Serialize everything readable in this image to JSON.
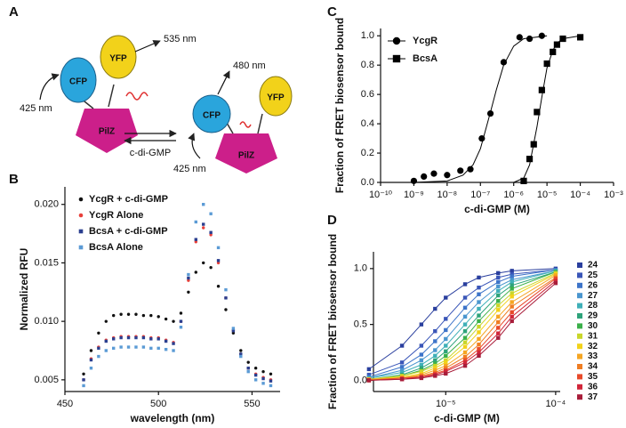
{
  "diagram": {
    "label": "A",
    "excitation_left": "425 nm",
    "cfp_left": "CFP",
    "yfp_left": "YFP",
    "emission_left": "535 nm",
    "pilz_left": "PilZ",
    "ligand": "c-di-GMP",
    "emission_right": "480 nm",
    "cfp_right": "CFP",
    "yfp_right": "YFP",
    "pilz_right": "PilZ",
    "excitation_right": "425 nm"
  },
  "chart_data": [
    {
      "type": "scatter",
      "label": "B",
      "xlabel": "wavelength (nm)",
      "ylabel": "Normalized RFU",
      "x": [
        460,
        464,
        468,
        472,
        476,
        480,
        484,
        488,
        492,
        496,
        500,
        504,
        508,
        512,
        516,
        520,
        524,
        528,
        532,
        536,
        540,
        544,
        548,
        552,
        556,
        560
      ],
      "xlim": [
        450,
        565
      ],
      "xticks": [
        450,
        500,
        550
      ],
      "ylim": [
        0.004,
        0.0215
      ],
      "yticks": [
        0.005,
        {
          "value": 0.01,
          "label": "0.010"
        },
        0.015,
        {
          "value": 0.02,
          "label": "0.020"
        }
      ],
      "legend": "upper left",
      "series": [
        {
          "name": "YcgR + c-di-GMP",
          "color": "#111111",
          "marker": "circle",
          "values": [
            0.0055,
            0.0075,
            0.009,
            0.01,
            0.0105,
            0.0106,
            0.0106,
            0.0106,
            0.0105,
            0.0105,
            0.0104,
            0.0102,
            0.01,
            0.0107,
            0.0125,
            0.0142,
            0.015,
            0.0146,
            0.013,
            0.011,
            0.009,
            0.0075,
            0.0065,
            0.006,
            0.0057,
            0.0055
          ]
        },
        {
          "name": "YcgR Alone",
          "color": "#e8403a",
          "marker": "circle",
          "values": [
            0.005,
            0.0068,
            0.0078,
            0.0084,
            0.0086,
            0.0087,
            0.0087,
            0.0087,
            0.0087,
            0.0086,
            0.0086,
            0.0084,
            0.0082,
            0.01,
            0.0135,
            0.0168,
            0.018,
            0.0174,
            0.015,
            0.012,
            0.0092,
            0.0072,
            0.006,
            0.0055,
            0.0052,
            0.005
          ]
        },
        {
          "name": "BcsA + c-di-GMP",
          "color": "#2b3f8f",
          "marker": "square",
          "values": [
            0.005,
            0.0067,
            0.0077,
            0.0083,
            0.0085,
            0.0086,
            0.0086,
            0.0086,
            0.0086,
            0.0085,
            0.0085,
            0.0083,
            0.0081,
            0.01,
            0.0137,
            0.017,
            0.0183,
            0.0176,
            0.0152,
            0.012,
            0.0092,
            0.0072,
            0.006,
            0.0054,
            0.0051,
            0.0049
          ]
        },
        {
          "name": "BcsA Alone",
          "color": "#5b9bd5",
          "marker": "square",
          "values": [
            0.0045,
            0.006,
            0.007,
            0.0075,
            0.0077,
            0.0078,
            0.0078,
            0.0078,
            0.0078,
            0.0077,
            0.0077,
            0.0076,
            0.0075,
            0.0095,
            0.014,
            0.0185,
            0.02,
            0.0192,
            0.0163,
            0.0127,
            0.0094,
            0.007,
            0.0057,
            0.005,
            0.0047,
            0.0045
          ]
        }
      ]
    },
    {
      "type": "scatter",
      "label": "C",
      "xlabel": "c-di-GMP (M)",
      "ylabel": "Fraction of FRET biosensor bound",
      "xlog": true,
      "xlim": [
        1e-10,
        0.001
      ],
      "xticks": [
        {
          "value": 1e-10,
          "label": "10⁻¹⁰"
        },
        {
          "value": 1e-09,
          "label": "10⁻⁹"
        },
        {
          "value": 1e-08,
          "label": "10⁻⁸"
        },
        {
          "value": 1e-07,
          "label": "10⁻⁷"
        },
        {
          "value": 1e-06,
          "label": "10⁻⁶"
        },
        {
          "value": 1e-05,
          "label": "10⁻⁵"
        },
        {
          "value": 0.0001,
          "label": "10⁻⁴"
        },
        {
          "value": 0.001,
          "label": "10⁻³"
        }
      ],
      "ylim": [
        0,
        1.05
      ],
      "yticks": [
        {
          "value": 0,
          "label": "0.0"
        },
        0.2,
        0.4,
        0.6,
        0.8,
        {
          "value": 1,
          "label": "1.0"
        }
      ],
      "legend": "upper left",
      "series": [
        {
          "name": "YcgR",
          "color": "#000000",
          "marker": "circle",
          "x": [
            1e-09,
            2e-09,
            4e-09,
            1e-08,
            2.5e-08,
            5e-08,
            1.1e-07,
            2e-07,
            5e-07,
            1.5e-06,
            3e-06,
            7e-06
          ],
          "values": [
            0.01,
            0.04,
            0.06,
            0.05,
            0.08,
            0.09,
            0.3,
            0.47,
            0.82,
            0.99,
            0.98,
            1.0
          ],
          "fit_x": [
            1e-09,
            1e-08,
            3e-08,
            6e-08,
            1e-07,
            2e-07,
            3e-07,
            5e-07,
            1e-06,
            2e-06,
            1e-05
          ],
          "fit_values": [
            0,
            0.01,
            0.05,
            0.12,
            0.23,
            0.48,
            0.63,
            0.8,
            0.93,
            0.98,
            1.0
          ]
        },
        {
          "name": "BcsA",
          "color": "#000000",
          "marker": "square",
          "x": [
            2e-06,
            3e-06,
            4e-06,
            5e-06,
            7e-06,
            1e-05,
            1.5e-05,
            2e-05,
            3e-05,
            0.0001
          ],
          "values": [
            0.01,
            0.16,
            0.26,
            0.48,
            0.63,
            0.81,
            0.89,
            0.94,
            0.98,
            0.99
          ],
          "fit_x": [
            1e-06,
            2e-06,
            3e-06,
            5e-06,
            7e-06,
            1e-05,
            1.5e-05,
            2e-05,
            3e-05,
            0.0001
          ],
          "fit_values": [
            0,
            0.03,
            0.12,
            0.38,
            0.58,
            0.78,
            0.9,
            0.95,
            0.98,
            1.0
          ]
        }
      ]
    },
    {
      "type": "line",
      "label": "D",
      "xlabel": "c-di-GMP  (M)",
      "ylabel": "Fraction of FRET biosensor bound",
      "xlog": true,
      "xlim": [
        2.2e-06,
        0.00011
      ],
      "xticks": [
        {
          "value": 1e-05,
          "label": "10⁻⁵"
        },
        {
          "value": 0.0001,
          "label": "10⁻⁴"
        }
      ],
      "ylim": [
        -0.1,
        1.15
      ],
      "yticks": [
        {
          "value": 0,
          "label": "0.0"
        },
        0.5,
        {
          "value": 1,
          "label": "1.0"
        }
      ],
      "legend": "outside right",
      "x": [
        2e-06,
        4e-06,
        6e-06,
        8e-06,
        1e-05,
        1.5e-05,
        2e-05,
        3e-05,
        4e-05,
        0.0001
      ],
      "series": [
        {
          "name": "24",
          "color": "#2a3f9e",
          "marker": "square",
          "values": [
            0.1,
            0.31,
            0.5,
            0.64,
            0.74,
            0.86,
            0.92,
            0.96,
            0.98,
            1.0
          ]
        },
        {
          "name": "25",
          "color": "#3a56b8",
          "marker": "square",
          "values": [
            0.05,
            0.16,
            0.31,
            0.44,
            0.55,
            0.74,
            0.83,
            0.92,
            0.95,
            0.99
          ]
        },
        {
          "name": "26",
          "color": "#3d74c9",
          "marker": "square",
          "values": [
            0.03,
            0.12,
            0.23,
            0.35,
            0.45,
            0.65,
            0.77,
            0.88,
            0.93,
            0.99
          ]
        },
        {
          "name": "27",
          "color": "#4a96cf",
          "marker": "square",
          "values": [
            0.02,
            0.09,
            0.18,
            0.27,
            0.37,
            0.57,
            0.7,
            0.84,
            0.9,
            0.98
          ]
        },
        {
          "name": "28",
          "color": "#3fb0b8",
          "marker": "square",
          "values": [
            0.02,
            0.07,
            0.14,
            0.22,
            0.31,
            0.5,
            0.64,
            0.8,
            0.88,
            0.98
          ]
        },
        {
          "name": "29",
          "color": "#2ea37a",
          "marker": "square",
          "values": [
            0.01,
            0.05,
            0.11,
            0.18,
            0.26,
            0.44,
            0.58,
            0.76,
            0.85,
            0.97
          ]
        },
        {
          "name": "30",
          "color": "#3bb04a",
          "marker": "square",
          "values": [
            0.01,
            0.04,
            0.09,
            0.15,
            0.22,
            0.38,
            0.53,
            0.71,
            0.82,
            0.97
          ]
        },
        {
          "name": "31",
          "color": "#c9d62a",
          "marker": "square",
          "values": [
            0.01,
            0.04,
            0.08,
            0.13,
            0.18,
            0.34,
            0.48,
            0.67,
            0.78,
            0.96
          ]
        },
        {
          "name": "32",
          "color": "#f2d21a",
          "marker": "square",
          "values": [
            0.01,
            0.03,
            0.06,
            0.11,
            0.16,
            0.3,
            0.43,
            0.63,
            0.75,
            0.95
          ]
        },
        {
          "name": "33",
          "color": "#f5a623",
          "marker": "square",
          "values": [
            0.01,
            0.02,
            0.05,
            0.09,
            0.13,
            0.25,
            0.37,
            0.57,
            0.7,
            0.94
          ]
        },
        {
          "name": "34",
          "color": "#ef7d22",
          "marker": "square",
          "values": [
            0,
            0.02,
            0.04,
            0.07,
            0.11,
            0.21,
            0.32,
            0.52,
            0.66,
            0.92
          ]
        },
        {
          "name": "35",
          "color": "#e84a2a",
          "marker": "square",
          "values": [
            0,
            0.02,
            0.03,
            0.06,
            0.09,
            0.18,
            0.28,
            0.47,
            0.61,
            0.91
          ]
        },
        {
          "name": "36",
          "color": "#d1263a",
          "marker": "square",
          "values": [
            0,
            0.01,
            0.03,
            0.05,
            0.08,
            0.16,
            0.25,
            0.42,
            0.57,
            0.89
          ]
        },
        {
          "name": "37",
          "color": "#a81d3a",
          "marker": "square",
          "values": [
            0,
            0.01,
            0.02,
            0.04,
            0.06,
            0.13,
            0.22,
            0.38,
            0.53,
            0.87
          ]
        }
      ]
    }
  ]
}
